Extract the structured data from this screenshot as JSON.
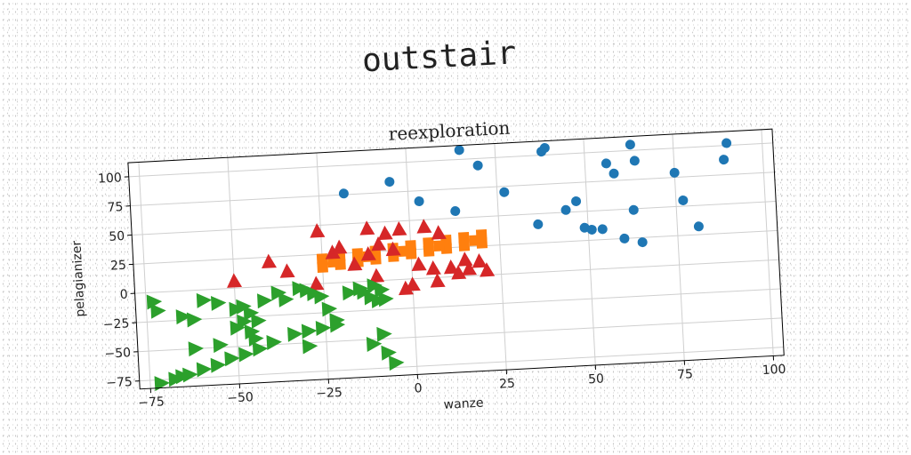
{
  "figure": {
    "suptitle": "outstair"
  },
  "chart_data": {
    "type": "scatter",
    "title": "reexploration",
    "xlabel": "wanze",
    "ylabel": "pelagianizer",
    "xlim": [
      -78,
      103
    ],
    "ylim": [
      -82,
      112
    ],
    "xticks": [
      -75,
      -50,
      -25,
      0,
      25,
      50,
      75,
      100
    ],
    "yticks": [
      -75,
      -50,
      -25,
      0,
      25,
      50,
      75,
      100
    ],
    "grid": true,
    "series": [
      {
        "name": "blue",
        "marker": "circle",
        "color": "#1f77b4",
        "x": [
          15,
          38,
          39,
          63,
          90,
          64,
          89,
          56,
          58,
          20,
          -5,
          27,
          -18,
          3,
          13,
          75,
          77,
          81,
          47,
          44,
          36,
          54,
          49,
          51,
          60,
          65,
          63
        ],
        "y": [
          108,
          103,
          106,
          105,
          102,
          91,
          88,
          90,
          81,
          94,
          84,
          70,
          76,
          66,
          56,
          79,
          55,
          32,
          59,
          52,
          41,
          34,
          36,
          34,
          25,
          21,
          49
        ]
      },
      {
        "name": "orange",
        "marker": "square",
        "color": "#ff7f0e",
        "x": [
          -25,
          -20,
          -15,
          -10,
          -5,
          0,
          5,
          10,
          15,
          20,
          -25,
          -20,
          -15,
          -10,
          -5,
          0,
          5,
          10,
          15,
          20,
          -22,
          -12,
          -2,
          8,
          18
        ],
        "y": [
          21,
          22.5,
          24,
          25.5,
          27,
          28.5,
          30,
          31.5,
          33,
          34.5,
          14,
          15.5,
          17,
          18.5,
          20,
          21.5,
          23,
          24.5,
          26,
          27.5,
          18,
          21,
          24,
          27,
          30
        ]
      },
      {
        "name": "red",
        "marker": "triangle-up",
        "color": "#d62728",
        "x": [
          -26,
          -12,
          -3,
          4,
          8,
          -7,
          -40,
          -50,
          -22,
          -12,
          -20,
          -5,
          -9,
          -35,
          -27,
          -10,
          2,
          6,
          11,
          15,
          19,
          0,
          -2,
          7,
          13,
          16,
          21,
          -16
        ],
        "y": [
          45,
          45,
          43,
          44,
          38,
          40,
          21,
          6,
          26,
          23,
          30,
          26,
          31,
          12,
          0,
          4,
          12,
          8,
          8,
          14,
          12,
          -5,
          -8,
          -3,
          3,
          6,
          4,
          15
        ],
        "count": 28
      },
      {
        "name": "green",
        "marker": "triangle-right",
        "color": "#2ca02c",
        "x": [
          -73,
          -72,
          -65,
          -62,
          -59,
          -55,
          -50,
          -48,
          -46,
          -44,
          -42,
          -38,
          -36,
          -32,
          -30,
          -28,
          -26,
          -24,
          -22,
          -14,
          -12,
          -11,
          -9,
          -8,
          -9,
          -12,
          -8,
          -6,
          -15,
          -18,
          -22,
          -26,
          -30,
          -34,
          -40,
          -44,
          -48,
          -52,
          -56,
          -60,
          -64,
          -68,
          -72,
          -50,
          -45,
          -55,
          -62,
          -66,
          -30,
          -46,
          -48,
          -10
        ],
        "y": [
          -8,
          -16,
          -22,
          -25,
          -9,
          -12,
          -18,
          -16,
          -22,
          -29,
          -12,
          -6,
          -12,
          -3,
          -5,
          -8,
          -11,
          -22,
          -32,
          -9,
          -14,
          -4,
          -8,
          -16,
          -46,
          -54,
          -62,
          -71,
          -6,
          -9,
          -36,
          -38,
          -40,
          -42,
          -48,
          -53,
          -57,
          -60,
          -65,
          -68,
          -72,
          -75,
          -78,
          -34,
          -44,
          -48,
          -50,
          -73,
          -53,
          -38,
          -29,
          -17
        ],
        "count": 52
      }
    ]
  }
}
